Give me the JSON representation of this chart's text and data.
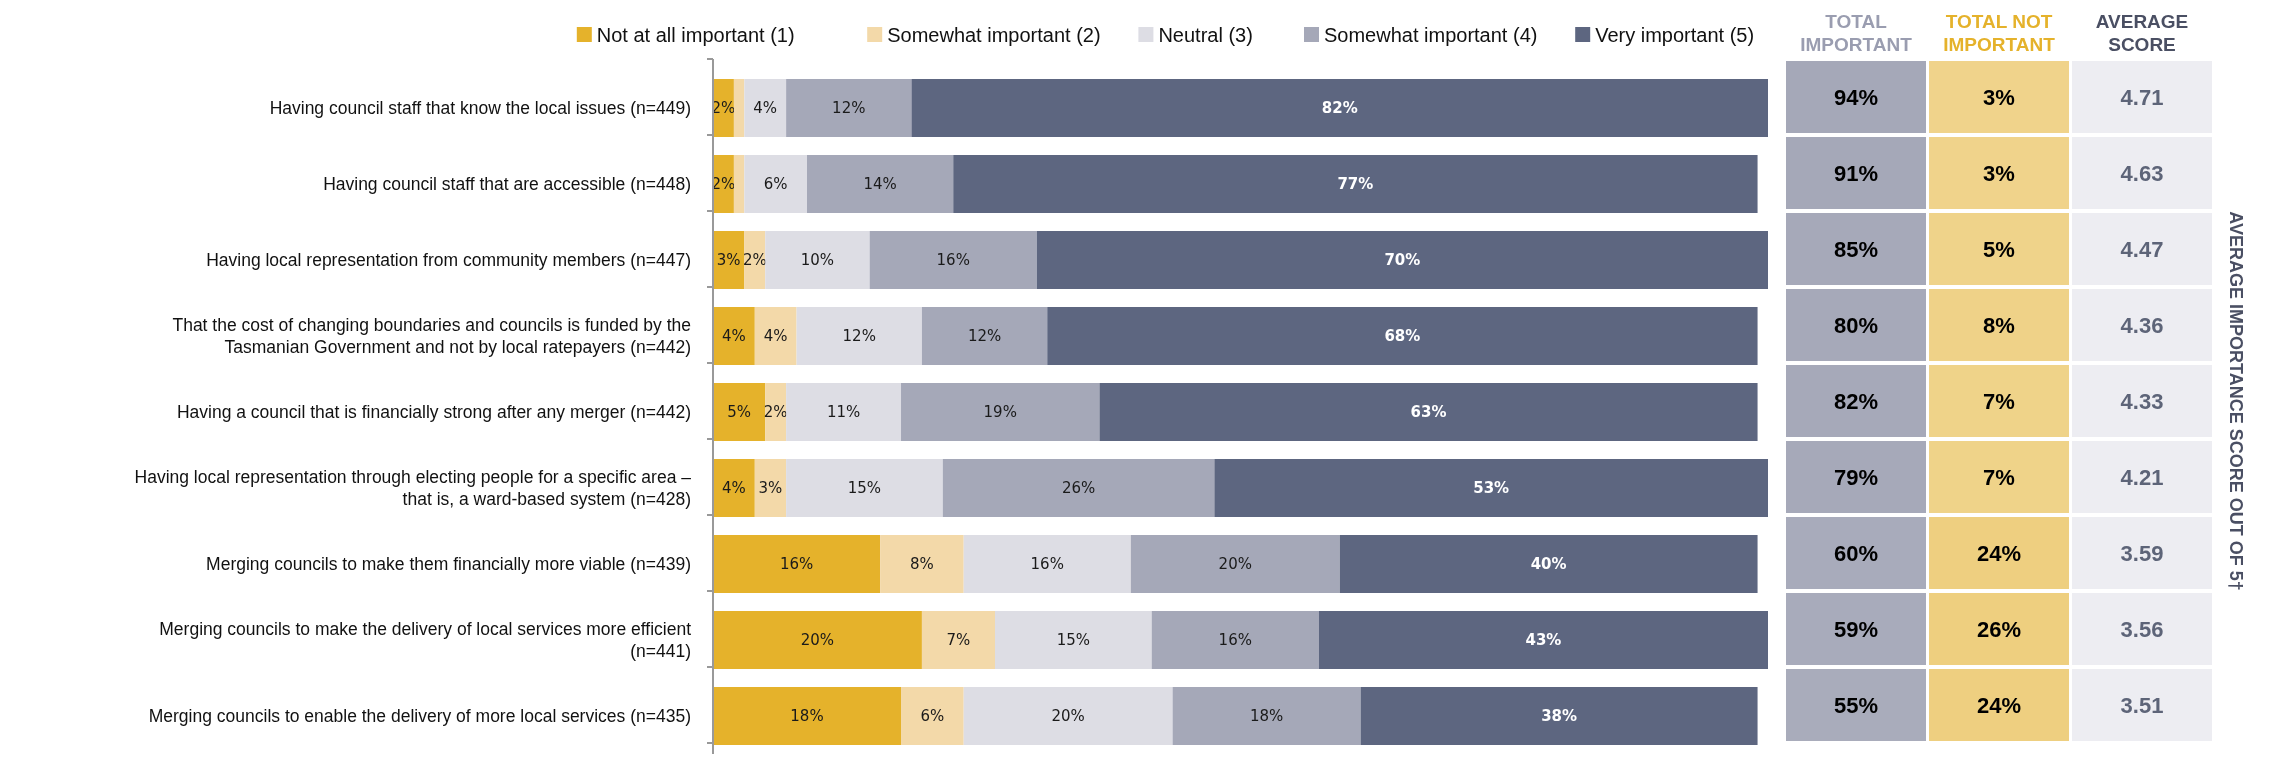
{
  "chart_data": [
    {
      "type": "bar",
      "orientation": "horizontal",
      "stacked": true,
      "legend": "top",
      "categories": [
        "Having council staff that know the local issues (n=449)",
        "Having council staff that are accessible (n=448)",
        "Having local representation from community members (n=447)",
        "That the cost of changing boundaries and councils is funded by the Tasmanian Government and not by local ratepayers (n=442)",
        "Having a council that is financially strong after any merger (n=442)",
        "Having local representation through electing people for a specific area – that is, a ward-based system (n=428)",
        "Merging councils to make them financially more viable (n=439)",
        "Merging councils to make the delivery of local services more efficient (n=441)",
        "Merging councils to enable the delivery of more local services (n=435)"
      ],
      "series": [
        {
          "name": "Not at all important (1)",
          "color": "#e5b22b",
          "values": [
            2,
            2,
            3,
            4,
            5,
            4,
            16,
            20,
            18
          ],
          "value_labels": [
            "2%",
            "2%",
            "3%",
            "4%",
            "5%",
            "4%",
            "16%",
            "20%",
            "18%"
          ]
        },
        {
          "name": "Somewhat important (2)",
          "color": "#f3d9a9",
          "values": [
            1,
            1,
            2,
            4,
            2,
            3,
            8,
            7,
            6
          ],
          "value_labels": [
            null,
            null,
            "2%",
            "4%",
            "2%",
            "3%",
            "8%",
            "7%",
            "6%"
          ]
        },
        {
          "name": "Neutral (3)",
          "color": "#dddde4",
          "values": [
            4,
            6,
            10,
            12,
            11,
            15,
            16,
            15,
            20
          ],
          "value_labels": [
            "4%",
            "6%",
            "10%",
            "12%",
            "11%",
            "15%",
            "16%",
            "15%",
            "20%"
          ]
        },
        {
          "name": "Somewhat important (4)",
          "color": "#a5a8b8",
          "values": [
            12,
            14,
            16,
            12,
            19,
            26,
            20,
            16,
            18
          ],
          "value_labels": [
            "12%",
            "14%",
            "16%",
            "12%",
            "19%",
            "26%",
            "20%",
            "16%",
            "18%"
          ]
        },
        {
          "name": "Very important (5)",
          "color": "#5d6680",
          "values": [
            82,
            77,
            70,
            68,
            63,
            53,
            40,
            43,
            38
          ],
          "value_labels": [
            "82%",
            "77%",
            "70%",
            "68%",
            "63%",
            "53%",
            "40%",
            "43%",
            "38%"
          ]
        }
      ]
    },
    {
      "type": "heatmap",
      "categories": [
        "TOTAL IMPORTANT",
        "TOTAL NOT IMPORTANT",
        "AVERAGE SCORE"
      ],
      "y_categories": [
        null,
        null,
        null,
        null,
        null,
        null,
        null,
        null,
        null
      ],
      "colors": [
        "#a5a8b8",
        "#eecf7f",
        "#ededf2"
      ],
      "cells": [
        [
          94,
          3,
          4.71
        ],
        [
          91,
          3,
          4.63
        ],
        [
          85,
          5,
          4.47
        ],
        [
          80,
          8,
          4.36
        ],
        [
          82,
          7,
          4.33
        ],
        [
          79,
          7,
          4.21
        ],
        [
          60,
          24,
          3.59
        ],
        [
          59,
          26,
          3.56
        ],
        [
          55,
          24,
          3.51
        ]
      ],
      "cell_labels": [
        [
          "94%",
          "3%",
          "4.71"
        ],
        [
          "91%",
          "3%",
          "4.63"
        ],
        [
          "85%",
          "5%",
          "4.47"
        ],
        [
          "80%",
          "8%",
          "4.36"
        ],
        [
          "82%",
          "7%",
          "4.33"
        ],
        [
          "79%",
          "7%",
          "4.21"
        ],
        [
          "60%",
          "24%",
          "3.59"
        ],
        [
          "59%",
          "26%",
          "3.56"
        ],
        [
          "55%",
          "24%",
          "3.51"
        ]
      ],
      "y2label": "AVERAGE IMPORTANCE SCORE OUT OF 5†"
    }
  ]
}
